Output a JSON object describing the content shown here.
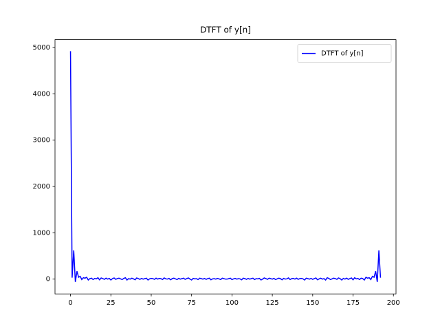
{
  "chart_data": {
    "type": "line",
    "title": "DTFT of y[n]",
    "x": [
      0,
      1,
      2,
      3,
      4,
      5,
      6,
      7,
      8,
      9,
      10,
      11,
      12,
      13,
      14,
      15,
      16,
      17,
      18,
      19,
      20,
      21,
      22,
      23,
      24,
      25,
      26,
      27,
      28,
      29,
      30,
      31,
      32,
      33,
      34,
      35,
      36,
      37,
      38,
      39,
      40,
      41,
      42,
      43,
      44,
      45,
      46,
      47,
      48,
      49,
      50,
      51,
      52,
      53,
      54,
      55,
      56,
      57,
      58,
      59,
      60,
      61,
      62,
      63,
      64,
      65,
      66,
      67,
      68,
      69,
      70,
      71,
      72,
      73,
      74,
      75,
      76,
      77,
      78,
      79,
      80,
      81,
      82,
      83,
      84,
      85,
      86,
      87,
      88,
      89,
      90,
      91,
      92,
      93,
      94,
      95,
      96,
      97,
      98,
      99,
      100,
      101,
      102,
      103,
      104,
      105,
      106,
      107,
      108,
      109,
      110,
      111,
      112,
      113,
      114,
      115,
      116,
      117,
      118,
      119,
      120,
      121,
      122,
      123,
      124,
      125,
      126,
      127,
      128,
      129,
      130,
      131,
      132,
      133,
      134,
      135,
      136,
      137,
      138,
      139,
      140,
      141,
      142,
      143,
      144,
      145,
      146,
      147,
      148,
      149,
      150,
      151,
      152,
      153,
      154,
      155,
      156,
      157,
      158,
      159,
      160,
      161,
      162,
      163,
      164,
      165,
      166,
      167,
      168,
      169,
      170,
      171,
      172,
      173,
      174,
      175,
      176,
      177,
      178,
      179,
      180,
      181,
      182,
      183,
      184,
      185,
      186,
      187,
      188,
      189,
      190,
      191,
      192
    ],
    "series": [
      {
        "name": "DTFT of y[n]",
        "color": "#0000ff",
        "values": [
          4920,
          30,
          620,
          -60,
          170,
          40,
          60,
          -10,
          30,
          20,
          40,
          -20,
          10,
          20,
          -10,
          15,
          5,
          30,
          -15,
          25,
          10,
          -5,
          20,
          0,
          15,
          -20,
          10,
          25,
          -5,
          10,
          20,
          5,
          -10,
          15,
          30,
          -20,
          10,
          0,
          20,
          5,
          -15,
          25,
          10,
          -5,
          15,
          0,
          10,
          20,
          -20,
          5,
          15,
          10,
          -5,
          20,
          0,
          15,
          10,
          -10,
          25,
          5,
          0,
          15,
          -15,
          10,
          20,
          5,
          -10,
          15,
          0,
          10,
          20,
          -5,
          10,
          25,
          0,
          -20,
          15,
          5,
          10,
          -10,
          20,
          10,
          0,
          15,
          -5,
          10,
          20,
          -15,
          5,
          10,
          0,
          15,
          5,
          -10,
          20,
          10,
          0,
          0,
          10,
          20,
          -10,
          5,
          15,
          0,
          10,
          5,
          -15,
          20,
          10,
          -5,
          15,
          0,
          10,
          20,
          -10,
          10,
          5,
          15,
          -20,
          0,
          25,
          10,
          -5,
          20,
          10,
          0,
          15,
          -10,
          5,
          20,
          10,
          -15,
          15,
          0,
          5,
          25,
          -10,
          10,
          15,
          0,
          20,
          -5,
          10,
          15,
          5,
          -20,
          20,
          10,
          0,
          15,
          -5,
          10,
          25,
          -15,
          5,
          20,
          0,
          10,
          -20,
          30,
          15,
          -10,
          5,
          20,
          10,
          -5,
          25,
          10,
          -20,
          15,
          0,
          20,
          -5,
          10,
          25,
          -15,
          30,
          5,
          15,
          -10,
          20,
          10,
          -20,
          40,
          20,
          30,
          -10,
          60,
          40,
          170,
          -60,
          620,
          30
        ]
      }
    ],
    "xlim": [
      -9.6,
      201.6
    ],
    "ylim": [
      -320,
      5170
    ],
    "xticks": [
      0,
      25,
      50,
      75,
      100,
      125,
      150,
      175,
      200
    ],
    "yticks": [
      0,
      1000,
      2000,
      3000,
      4000,
      5000
    ],
    "legend": "upper right"
  }
}
